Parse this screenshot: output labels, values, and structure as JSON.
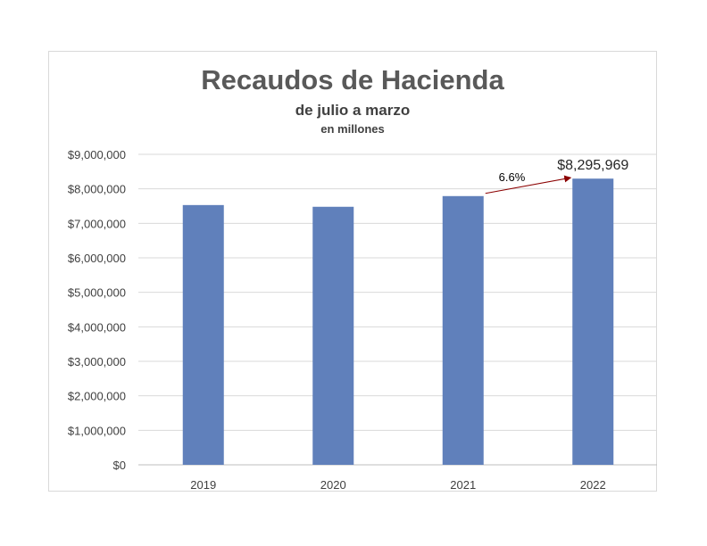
{
  "chart_data": {
    "type": "bar",
    "title": "Recaudos de Hacienda",
    "subtitle": "de julio a marzo",
    "subsubtitle": "en millones",
    "categories": [
      "2019",
      "2020",
      "2021",
      "2022"
    ],
    "values": [
      7530000,
      7480000,
      7790000,
      8295969
    ],
    "ylim": [
      0,
      9000000
    ],
    "yticks": [
      0,
      1000000,
      2000000,
      3000000,
      4000000,
      5000000,
      6000000,
      7000000,
      8000000,
      9000000
    ],
    "ytick_labels": [
      "$0",
      "$1,000,000",
      "$2,000,000",
      "$3,000,000",
      "$4,000,000",
      "$5,000,000",
      "$6,000,000",
      "$7,000,000",
      "$8,000,000",
      "$9,000,000"
    ],
    "data_label": {
      "category": "2022",
      "text": "$8,295,969"
    },
    "annotation": {
      "text": "6.6%",
      "from": "2021",
      "to": "2022",
      "arrow_color": "#8b0000"
    },
    "bar_color": "#6080bb",
    "grid": true,
    "legend": "none"
  }
}
